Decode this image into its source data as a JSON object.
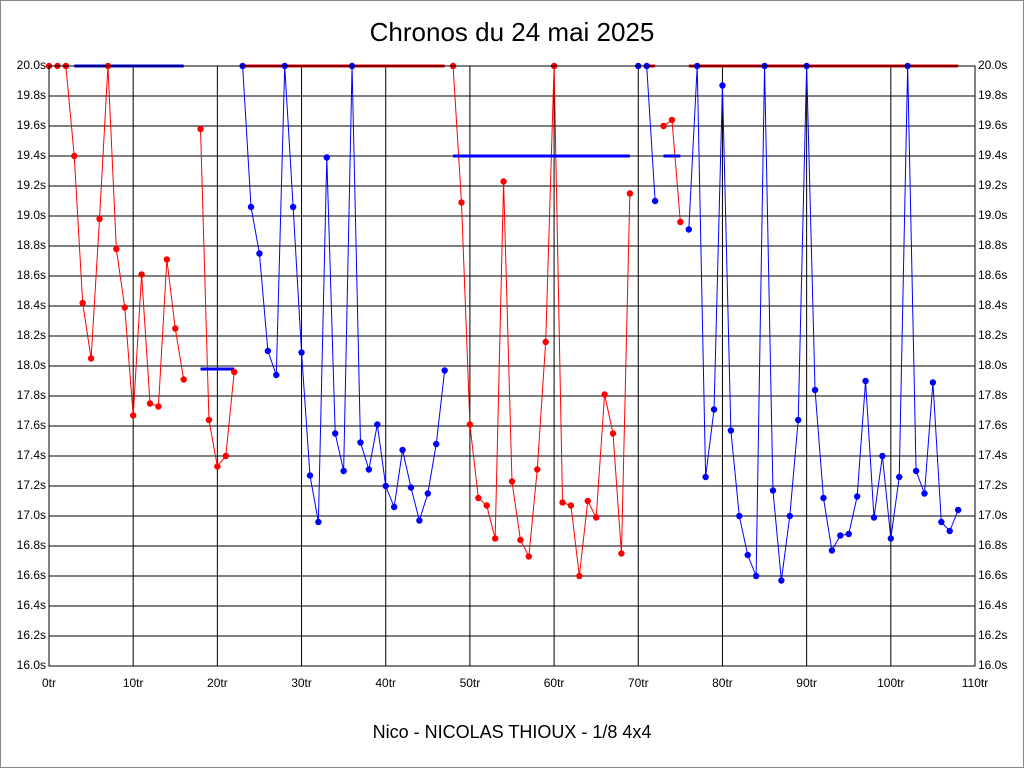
{
  "chart_data": {
    "type": "line",
    "title": "Chronos du 24 mai 2025",
    "footer": "Nico - NICOLAS THIOUX - 1/8 4x4",
    "xlim": [
      0,
      110
    ],
    "xticks": [
      {
        "value": 0,
        "label": "0tr"
      },
      {
        "value": 10,
        "label": "10tr"
      },
      {
        "value": 20,
        "label": "20tr"
      },
      {
        "value": 30,
        "label": "30tr"
      },
      {
        "value": 40,
        "label": "40tr"
      },
      {
        "value": 50,
        "label": "50tr"
      },
      {
        "value": 60,
        "label": "60tr"
      },
      {
        "value": 70,
        "label": "70tr"
      },
      {
        "value": 80,
        "label": "80tr"
      },
      {
        "value": 90,
        "label": "90tr"
      },
      {
        "value": 100,
        "label": "100tr"
      },
      {
        "value": 110,
        "label": "110tr"
      }
    ],
    "ylim": [
      16,
      20
    ],
    "yticks": [
      {
        "value": 16,
        "label": "16.0s"
      },
      {
        "value": 16.2,
        "label": "16.2s"
      },
      {
        "value": 16.4,
        "label": "16.4s"
      },
      {
        "value": 16.6,
        "label": "16.6s"
      },
      {
        "value": 16.8,
        "label": "16.8s"
      },
      {
        "value": 17,
        "label": "17.0s"
      },
      {
        "value": 17.2,
        "label": "17.2s"
      },
      {
        "value": 17.4,
        "label": "17.4s"
      },
      {
        "value": 17.6,
        "label": "17.6s"
      },
      {
        "value": 17.8,
        "label": "17.8s"
      },
      {
        "value": 18,
        "label": "18.0s"
      },
      {
        "value": 18.2,
        "label": "18.2s"
      },
      {
        "value": 18.4,
        "label": "18.4s"
      },
      {
        "value": 18.6,
        "label": "18.6s"
      },
      {
        "value": 18.8,
        "label": "18.8s"
      },
      {
        "value": 19,
        "label": "19.0s"
      },
      {
        "value": 19.2,
        "label": "19.2s"
      },
      {
        "value": 19.4,
        "label": "19.4s"
      },
      {
        "value": 19.6,
        "label": "19.6s"
      },
      {
        "value": 19.8,
        "label": "19.8s"
      },
      {
        "value": 20,
        "label": "20.0s"
      }
    ],
    "grid": true,
    "series": [
      {
        "color": "#ff0000",
        "markers": true,
        "x": [
          0,
          1,
          2,
          3,
          4,
          5,
          6,
          7,
          8,
          9,
          10,
          11,
          12,
          13,
          14,
          15,
          16
        ],
        "values": [
          20,
          20,
          20,
          19.4,
          18.42,
          18.05,
          18.98,
          20,
          18.78,
          18.39,
          17.67,
          18.61,
          17.75,
          17.73,
          18.71,
          18.25,
          17.91
        ]
      },
      {
        "color": "#0000ff",
        "markers": false,
        "x": [
          3,
          16
        ],
        "values": [
          20,
          20
        ]
      },
      {
        "color": "#ff0000",
        "markers": true,
        "x": [
          18,
          19,
          20,
          21,
          22
        ],
        "values": [
          19.58,
          17.64,
          17.33,
          17.4,
          17.96
        ]
      },
      {
        "color": "#0000ff",
        "markers": false,
        "x": [
          18,
          22
        ],
        "values": [
          17.98,
          17.98
        ]
      },
      {
        "color": "#0000ff",
        "markers": true,
        "x": [
          23,
          24,
          25,
          26,
          27,
          28,
          29,
          30,
          31,
          32,
          33,
          34,
          35,
          36,
          37,
          38,
          39,
          40,
          41,
          42,
          43,
          44,
          45,
          46,
          47
        ],
        "values": [
          20,
          19.06,
          18.75,
          18.1,
          17.94,
          20,
          19.06,
          18.09,
          17.27,
          16.96,
          19.39,
          17.55,
          17.3,
          20,
          17.49,
          17.31,
          17.61,
          17.2,
          17.06,
          17.44,
          17.19,
          16.97,
          17.15,
          17.48,
          17.97
        ]
      },
      {
        "color": "#ff0000",
        "markers": false,
        "x": [
          23,
          47
        ],
        "values": [
          20,
          20
        ]
      },
      {
        "color": "#ff0000",
        "markers": true,
        "x": [
          48,
          49,
          50,
          51,
          52,
          53,
          54,
          55,
          56,
          57,
          58,
          59,
          60,
          61,
          62,
          63,
          64,
          65,
          66,
          67,
          68,
          69
        ],
        "values": [
          20,
          19.09,
          17.61,
          17.12,
          17.07,
          16.85,
          19.23,
          17.23,
          16.84,
          16.73,
          17.31,
          18.16,
          20,
          17.09,
          17.07,
          16.6,
          17.1,
          16.99,
          17.81,
          17.55,
          16.75,
          19.15
        ]
      },
      {
        "color": "#0000ff",
        "markers": false,
        "x": [
          48,
          69
        ],
        "values": [
          19.4,
          19.4
        ]
      },
      {
        "color": "#0000ff",
        "markers": true,
        "x": [
          70,
          71,
          72
        ],
        "values": [
          20,
          20,
          19.1
        ]
      },
      {
        "color": "#ff0000",
        "markers": false,
        "x": [
          71,
          72
        ],
        "values": [
          20,
          20
        ]
      },
      {
        "color": "#ff0000",
        "markers": true,
        "x": [
          73,
          74,
          75
        ],
        "values": [
          19.6,
          19.64,
          18.96
        ]
      },
      {
        "color": "#0000ff",
        "markers": false,
        "x": [
          73,
          75
        ],
        "values": [
          19.4,
          19.4
        ]
      },
      {
        "color": "#0000ff",
        "markers": true,
        "x": [
          76,
          77,
          78,
          79,
          80,
          81,
          82,
          83,
          84,
          85,
          86,
          87,
          88,
          89,
          90,
          91,
          92,
          93,
          94,
          95,
          96,
          97,
          98,
          99,
          100,
          101,
          102,
          103,
          104,
          105,
          106,
          107,
          108
        ],
        "values": [
          18.91,
          20,
          17.26,
          17.71,
          19.87,
          17.57,
          17,
          16.74,
          16.6,
          20,
          17.17,
          16.57,
          17,
          17.64,
          20,
          17.84,
          17.12,
          16.77,
          16.87,
          16.88,
          17.13,
          17.9,
          16.99,
          17.4,
          16.85,
          17.26,
          20,
          17.3,
          17.15,
          17.89,
          16.96,
          16.9,
          17.04
        ]
      },
      {
        "color": "#ff0000",
        "markers": false,
        "x": [
          76,
          108
        ],
        "values": [
          20,
          20
        ]
      }
    ]
  }
}
